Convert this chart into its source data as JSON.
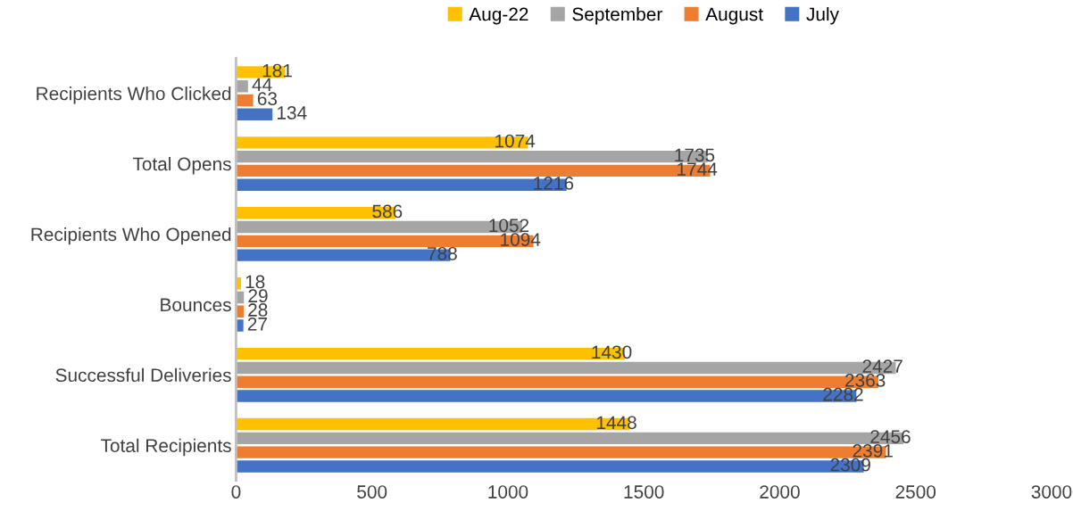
{
  "chart_data": {
    "type": "bar",
    "orientation": "horizontal",
    "categories": [
      "Recipients Who Clicked",
      "Total Opens",
      "Recipients Who Opened",
      "Bounces",
      "Successful Deliveries",
      "Total Recipients"
    ],
    "series": [
      {
        "name": "Aug-22",
        "color": "#ffc000",
        "values": [
          181,
          1074,
          586,
          18,
          1430,
          1448
        ]
      },
      {
        "name": "September",
        "color": "#a5a5a5",
        "values": [
          44,
          1735,
          1052,
          29,
          2427,
          2456
        ]
      },
      {
        "name": "August",
        "color": "#ed7d31",
        "values": [
          63,
          1744,
          1094,
          28,
          2363,
          2391
        ]
      },
      {
        "name": "July",
        "color": "#4472c4",
        "values": [
          134,
          1216,
          788,
          27,
          2282,
          2309
        ]
      }
    ],
    "xlim": [
      0,
      3000
    ],
    "xticks": [
      0,
      500,
      1000,
      1500,
      2000,
      2500,
      3000
    ],
    "data_labels": true,
    "legend": "top",
    "grid": false
  }
}
